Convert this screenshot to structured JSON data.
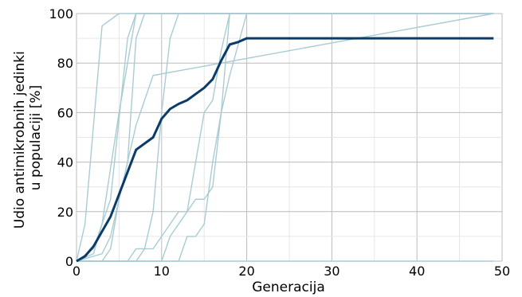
{
  "chart_data": {
    "type": "line",
    "title": "",
    "xlabel": "Generacija",
    "ylabel_lines": [
      "Udio antimikrobnih jedinki",
      "u populaciji [%]"
    ],
    "xlim": [
      0,
      50
    ],
    "ylim": [
      0,
      100
    ],
    "xticks": [
      0,
      10,
      20,
      30,
      40,
      50
    ],
    "yticks": [
      0,
      20,
      40,
      60,
      80,
      100
    ],
    "grid": true,
    "colors": {
      "run_line": "#a9ccd2",
      "mean_line": "#0b3b67",
      "grid": "#e6e6e6",
      "major_grid": "#bcbcbc"
    },
    "series": [
      {
        "role": "run",
        "x": [
          0,
          1,
          3,
          5,
          49
        ],
        "y": [
          0,
          15,
          95,
          100,
          100
        ]
      },
      {
        "role": "run",
        "x": [
          0,
          2,
          4,
          6,
          7,
          49
        ],
        "y": [
          0,
          5,
          25,
          90,
          100,
          100
        ]
      },
      {
        "role": "run",
        "x": [
          0,
          2,
          3,
          5,
          7,
          49
        ],
        "y": [
          0,
          3,
          15,
          60,
          100,
          100
        ]
      },
      {
        "role": "run",
        "x": [
          0,
          3,
          4,
          6,
          7,
          8,
          49
        ],
        "y": [
          0,
          3,
          10,
          40,
          90,
          100,
          100
        ]
      },
      {
        "role": "run",
        "x": [
          0,
          3,
          4,
          5,
          7,
          9,
          49
        ],
        "y": [
          0,
          0,
          5,
          25,
          55,
          75,
          100
        ]
      },
      {
        "role": "run",
        "x": [
          0,
          6,
          7,
          8,
          9,
          10,
          11,
          12,
          49
        ],
        "y": [
          0,
          0,
          5,
          5,
          20,
          60,
          90,
          100,
          100
        ]
      },
      {
        "role": "run",
        "x": [
          0,
          10,
          11,
          13,
          14,
          15,
          16,
          17,
          18,
          49
        ],
        "y": [
          0,
          0,
          10,
          20,
          25,
          25,
          30,
          60,
          100,
          100
        ]
      },
      {
        "role": "run",
        "x": [
          0,
          12,
          13,
          14,
          15,
          16,
          17,
          18,
          20,
          49
        ],
        "y": [
          0,
          0,
          10,
          10,
          15,
          40,
          60,
          75,
          100,
          100
        ]
      },
      {
        "role": "run",
        "x": [
          0,
          7,
          8,
          9,
          10,
          11,
          12,
          13,
          14,
          15,
          16,
          17,
          18,
          49
        ],
        "y": [
          0,
          0,
          5,
          5,
          10,
          15,
          20,
          20,
          40,
          60,
          65,
          85,
          100,
          100
        ]
      },
      {
        "role": "run",
        "x": [
          0,
          49
        ],
        "y": [
          0,
          0
        ]
      },
      {
        "role": "mean",
        "x": [
          0,
          1,
          2,
          3,
          4,
          5,
          6,
          7,
          8,
          9,
          10,
          11,
          12,
          13,
          14,
          15,
          16,
          17,
          18,
          19,
          20,
          49
        ],
        "y": [
          0,
          2,
          6,
          12,
          18,
          27,
          36,
          45,
          47.5,
          50,
          57.5,
          61.5,
          63.5,
          65,
          67.5,
          70,
          73.5,
          81,
          87.5,
          88.5,
          90,
          90
        ]
      }
    ]
  }
}
